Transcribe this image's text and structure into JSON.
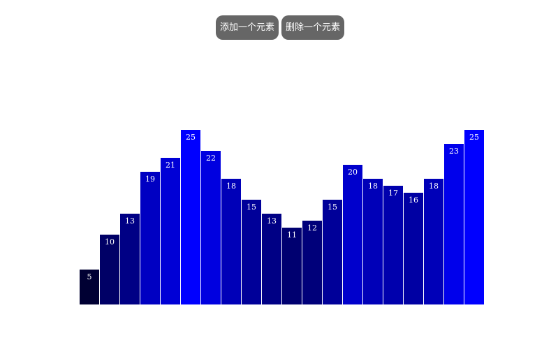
{
  "toolbar": {
    "add_label": "添加一个元素",
    "remove_label": "删除一个元素"
  },
  "colors": {
    "button_bg": "#666666",
    "button_text": "#ffffff",
    "bar_min": "#000033",
    "bar_max": "#0000ff",
    "label": "#ffffff"
  },
  "chart_data": {
    "type": "bar",
    "title": "",
    "xlabel": "",
    "ylabel": "",
    "ylim": [
      0,
      25
    ],
    "grid": false,
    "legend": "none",
    "values": [
      5,
      10,
      13,
      19,
      21,
      25,
      22,
      18,
      15,
      13,
      11,
      12,
      15,
      20,
      18,
      17,
      16,
      18,
      23,
      25
    ]
  }
}
